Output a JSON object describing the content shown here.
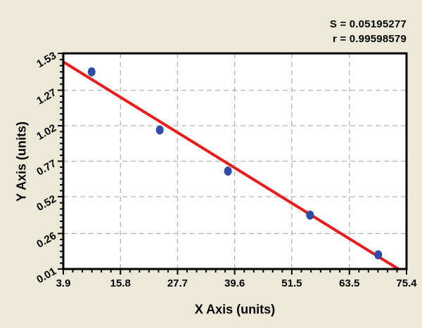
{
  "chart_data": {
    "type": "scatter",
    "title": "",
    "xlabel": "X Axis (units)",
    "ylabel": "Y Axis (units)",
    "annotations": [
      "S = 0.05195277",
      "r = 0.99598579"
    ],
    "xlim": [
      3.9,
      75.4
    ],
    "ylim": [
      0.01,
      1.53
    ],
    "x_ticks": [
      3.9,
      15.8,
      27.7,
      39.6,
      51.5,
      63.5,
      75.4
    ],
    "x_tick_labels": [
      "3.9",
      "15.8",
      "27.7",
      "39.6",
      "51.5",
      "63.5",
      "75.4"
    ],
    "y_ticks": [
      0.01,
      0.26,
      0.52,
      0.77,
      1.02,
      1.27,
      1.53
    ],
    "y_tick_labels": [
      "0.01",
      "0.26",
      "0.52",
      "0.77",
      "1.02",
      "1.27",
      "1.53"
    ],
    "minor_ticks_per_interval": 5,
    "grid": true,
    "legend": "none",
    "points": [
      {
        "x": 9.8,
        "y": 1.4
      },
      {
        "x": 24.0,
        "y": 0.99
      },
      {
        "x": 38.2,
        "y": 0.7
      },
      {
        "x": 55.3,
        "y": 0.39
      },
      {
        "x": 69.5,
        "y": 0.11
      }
    ],
    "fit_line": {
      "x1": 3.9,
      "y1": 1.47,
      "x2": 73.7,
      "y2": 0.01
    },
    "colors": {
      "background": "#ECE9D8",
      "plot_background": "#FFFFFF",
      "point": "#2D4DA6",
      "fit_line": "#EE1B1B",
      "grid": "#B3B3B3",
      "axis": "#000000",
      "text": "#000000"
    }
  }
}
